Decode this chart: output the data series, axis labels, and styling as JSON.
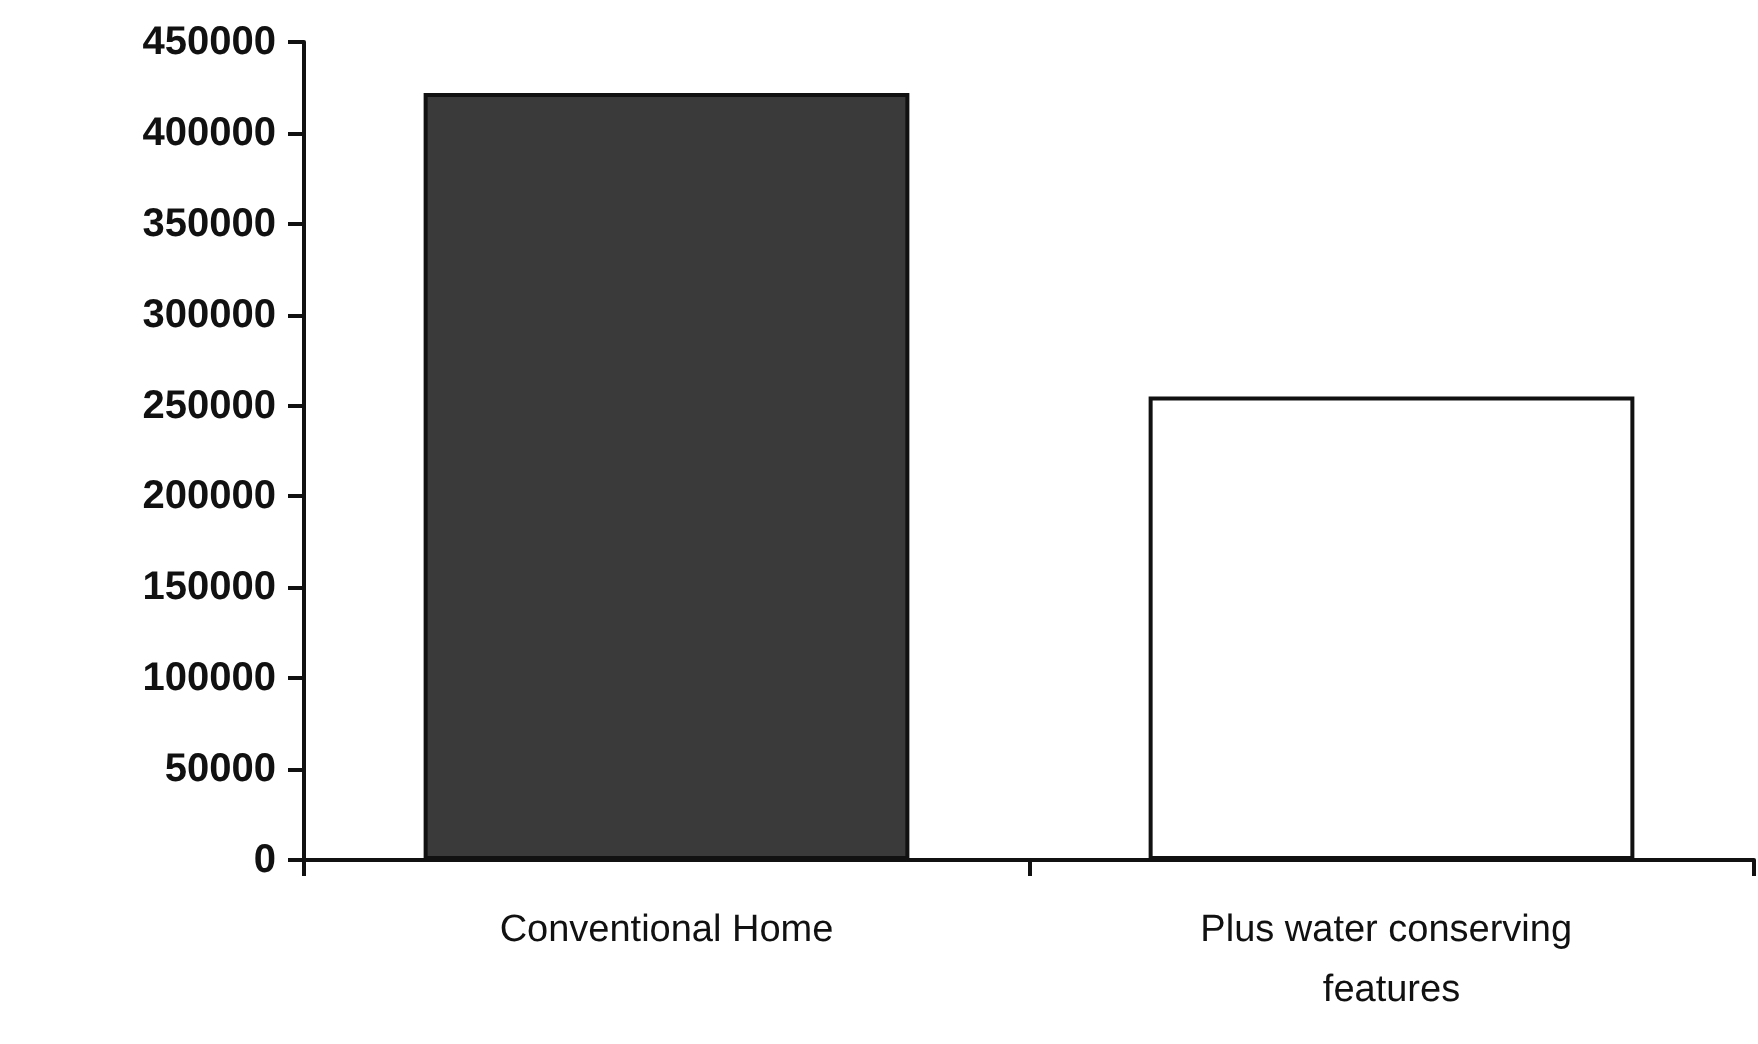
{
  "chart_data": {
    "type": "bar",
    "categories": [
      "Conventional Home",
      "Plus water conserving features"
    ],
    "values": [
      422000,
      255000
    ],
    "colors": [
      "#3a3a3a",
      "#ffffff"
    ],
    "ylim": [
      0,
      450000
    ],
    "yticks": [
      0,
      50000,
      100000,
      150000,
      200000,
      250000,
      300000,
      350000,
      400000,
      450000
    ],
    "grid": false
  }
}
